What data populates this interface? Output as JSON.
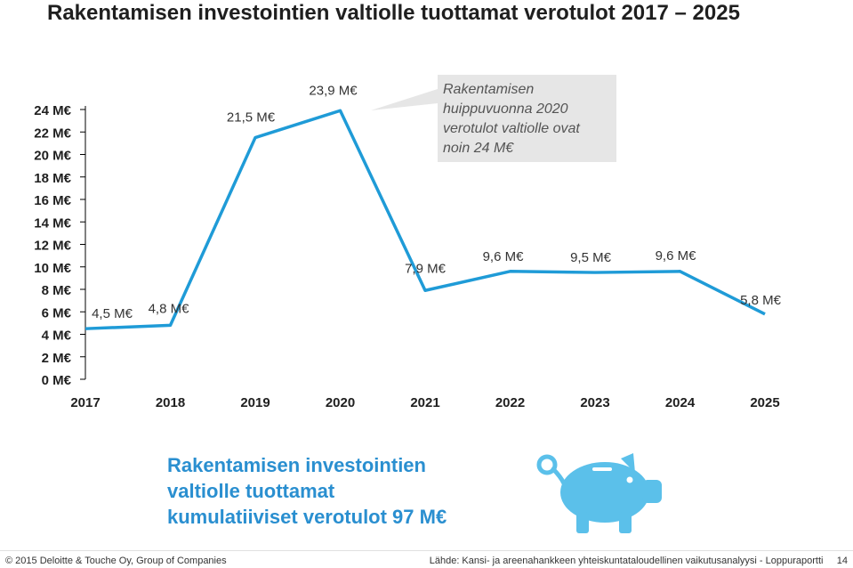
{
  "title": "Rakentamisen investointien valtiolle tuottamat verotulot 2017 – 2025",
  "chart_data": {
    "type": "line",
    "x": [
      "2017",
      "2018",
      "2019",
      "2020",
      "2021",
      "2022",
      "2023",
      "2024",
      "2025"
    ],
    "series": [
      {
        "values": [
          4.5,
          4.8,
          21.5,
          23.9,
          7.9,
          9.6,
          9.5,
          9.6,
          5.8
        ],
        "labels": [
          "4,5 M€",
          "4,8 M€",
          "21,5 M€",
          "23,9 M€",
          "7,9 M€",
          "9,6 M€",
          "9,5 M€",
          "9,6 M€",
          "5,8 M€"
        ]
      }
    ],
    "yticks": [
      "0 M€",
      "2 M€",
      "4 M€",
      "6 M€",
      "8 M€",
      "10 M€",
      "12 M€",
      "14 M€",
      "16 M€",
      "18 M€",
      "20 M€",
      "22 M€",
      "24 M€"
    ],
    "ylim": [
      0,
      24
    ],
    "xlabel": "",
    "ylabel": "",
    "grid": false,
    "line_color": "#1f9bd7"
  },
  "callout": {
    "lines": [
      "Rakentamisen",
      "huippuvuonna 2020",
      "verotulot valtiolle ovat",
      "noin 24 M€"
    ]
  },
  "summary": {
    "lines": [
      "Rakentamisen investointien",
      "valtiolle tuottamat",
      "kumulatiiviset verotulot 97 M€"
    ],
    "color": "#2a8fd0"
  },
  "icon": "piggy-bank-icon",
  "footer": {
    "left": "© 2015 Deloitte & Touche Oy, Group of Companies",
    "right": "Lähde: Kansi- ja areenahankkeen yhteiskuntataloudellinen vaikutusanalyysi - Loppuraportti",
    "page": "14"
  }
}
